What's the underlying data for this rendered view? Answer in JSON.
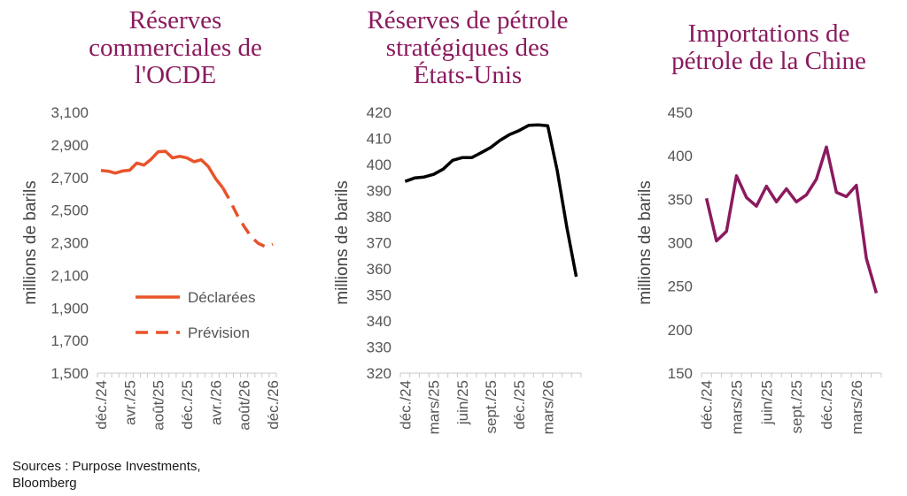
{
  "chart_data": [
    {
      "type": "line",
      "title": [
        "Réserves",
        "commerciales de",
        "l'OCDE"
      ],
      "ylabel": "millions de barils",
      "ylim": [
        1500,
        3100
      ],
      "yticks": [
        "1,500",
        "1,700",
        "1,900",
        "2,100",
        "2,300",
        "2,500",
        "2,700",
        "2,900",
        "3,100"
      ],
      "yticks_values": [
        1500,
        1700,
        1900,
        2100,
        2300,
        2500,
        2700,
        2900,
        3100
      ],
      "x_labels": [
        "déc./24",
        "avr./25",
        "août/25",
        "déc./25",
        "avr./26",
        "août/26",
        "déc./26"
      ],
      "x_count": 25,
      "legend": "center-right",
      "color": "#e8532a",
      "series": [
        {
          "name": "Déclarées",
          "style": "solid",
          "x": [
            0,
            1,
            2,
            3,
            4,
            5,
            6,
            7,
            8,
            9,
            10,
            11,
            12,
            13,
            14,
            15,
            16,
            17
          ],
          "values": [
            2743,
            2739,
            2727,
            2740,
            2745,
            2788,
            2776,
            2812,
            2858,
            2861,
            2820,
            2830,
            2820,
            2797,
            2809,
            2767,
            2694,
            2638
          ]
        },
        {
          "name": "Prévision",
          "style": "dashed",
          "x": [
            17,
            18,
            19,
            20,
            21,
            22,
            23,
            24
          ],
          "values": [
            2638,
            2560,
            2472,
            2400,
            2335,
            2295,
            2275,
            2290
          ]
        }
      ]
    },
    {
      "type": "line",
      "title": [
        "Réserves de pétrole",
        "stratégiques des",
        "États-Unis"
      ],
      "ylabel": "millions de barils",
      "ylim": [
        320,
        420
      ],
      "yticks": [
        "320",
        "330",
        "340",
        "350",
        "360",
        "370",
        "380",
        "390",
        "400",
        "410",
        "420"
      ],
      "yticks_values": [
        320,
        330,
        340,
        350,
        360,
        370,
        380,
        390,
        400,
        410,
        420
      ],
      "x_labels": [
        "déc./24",
        "mars/25",
        "juin/25",
        "sept./25",
        "déc./25",
        "mars/26"
      ],
      "x_count": 19,
      "color": "#000000",
      "series": [
        {
          "x": [
            0,
            1,
            2,
            3,
            4,
            5,
            6,
            7,
            8,
            9,
            10,
            11,
            12,
            13,
            14,
            15,
            16,
            17,
            18
          ],
          "values": [
            393.5,
            394.8,
            395.2,
            396.2,
            398.2,
            401.6,
            402.6,
            402.6,
            404.5,
            406.5,
            409.3,
            411.5,
            413.0,
            415.0,
            415.2,
            414.8,
            397.5,
            376.0,
            357.0
          ]
        }
      ]
    },
    {
      "type": "line",
      "title": [
        "Importations de",
        "pétrole de la Chine"
      ],
      "ylabel": "millions de barils",
      "ylim": [
        150,
        450
      ],
      "yticks": [
        "150",
        "200",
        "250",
        "300",
        "350",
        "400",
        "450"
      ],
      "yticks_values": [
        150,
        200,
        250,
        300,
        350,
        400,
        450
      ],
      "x_labels": [
        "déc./24",
        "mars/25",
        "juin/25",
        "sept./25",
        "déc./25",
        "mars/26"
      ],
      "x_count": 18,
      "color": "#8b1a5e",
      "series": [
        {
          "x": [
            0,
            1,
            2,
            3,
            4,
            5,
            6,
            7,
            8,
            9,
            10,
            11,
            12,
            13,
            14,
            15,
            16,
            17
          ],
          "values": [
            351,
            302,
            313,
            377,
            352,
            342,
            365,
            347,
            362,
            347,
            355,
            373,
            410,
            358,
            353,
            366,
            282,
            242
          ]
        }
      ]
    }
  ],
  "source": [
    "Sources : Purpose Investments,",
    "Bloomberg"
  ]
}
